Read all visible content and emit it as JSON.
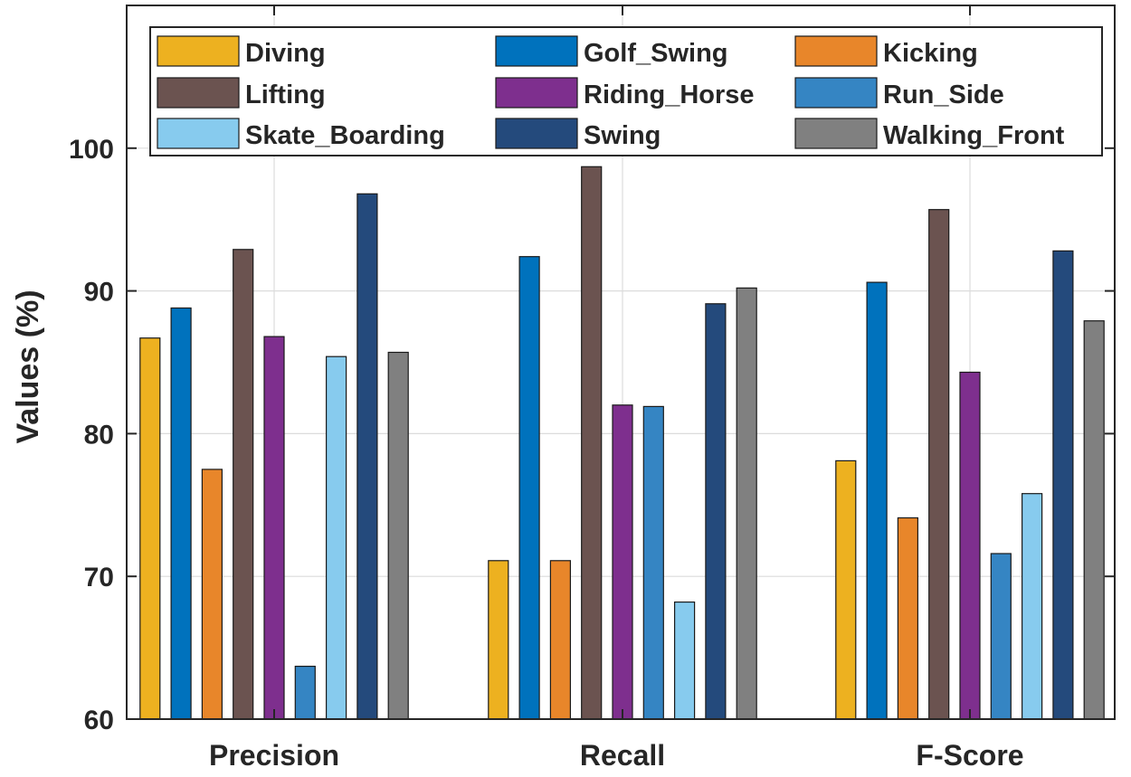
{
  "chart_data": {
    "type": "bar",
    "ylabel": "Values (%)",
    "xlabel": "",
    "ylim": [
      60,
      110
    ],
    "yticks": [
      60,
      70,
      80,
      90,
      100
    ],
    "grid": true,
    "legend_position": "top",
    "categories": [
      "Precision",
      "Recall",
      "F-Score"
    ],
    "series": [
      {
        "name": "Diving",
        "color": "#EDB120",
        "values": [
          86.7,
          71.1,
          78.1
        ]
      },
      {
        "name": "Golf_Swing",
        "color": "#0072BD",
        "values": [
          88.8,
          92.4,
          90.6
        ]
      },
      {
        "name": "Kicking",
        "color": "#E8862A",
        "values": [
          77.5,
          71.1,
          74.1
        ]
      },
      {
        "name": "Lifting",
        "color": "#6B5350",
        "values": [
          92.9,
          98.7,
          95.7
        ]
      },
      {
        "name": "Riding_Horse",
        "color": "#7E2F8E",
        "values": [
          86.8,
          82.0,
          84.3
        ]
      },
      {
        "name": "Run_Side",
        "color": "#3585C3",
        "values": [
          63.7,
          81.9,
          71.6
        ]
      },
      {
        "name": "Skate_Boarding",
        "color": "#87CBEE",
        "values": [
          85.4,
          68.2,
          75.8
        ]
      },
      {
        "name": "Swing",
        "color": "#244A7C",
        "values": [
          96.8,
          89.1,
          92.8
        ]
      },
      {
        "name": "Walking_Front",
        "color": "#808080",
        "values": [
          85.7,
          90.2,
          87.9
        ]
      }
    ]
  }
}
